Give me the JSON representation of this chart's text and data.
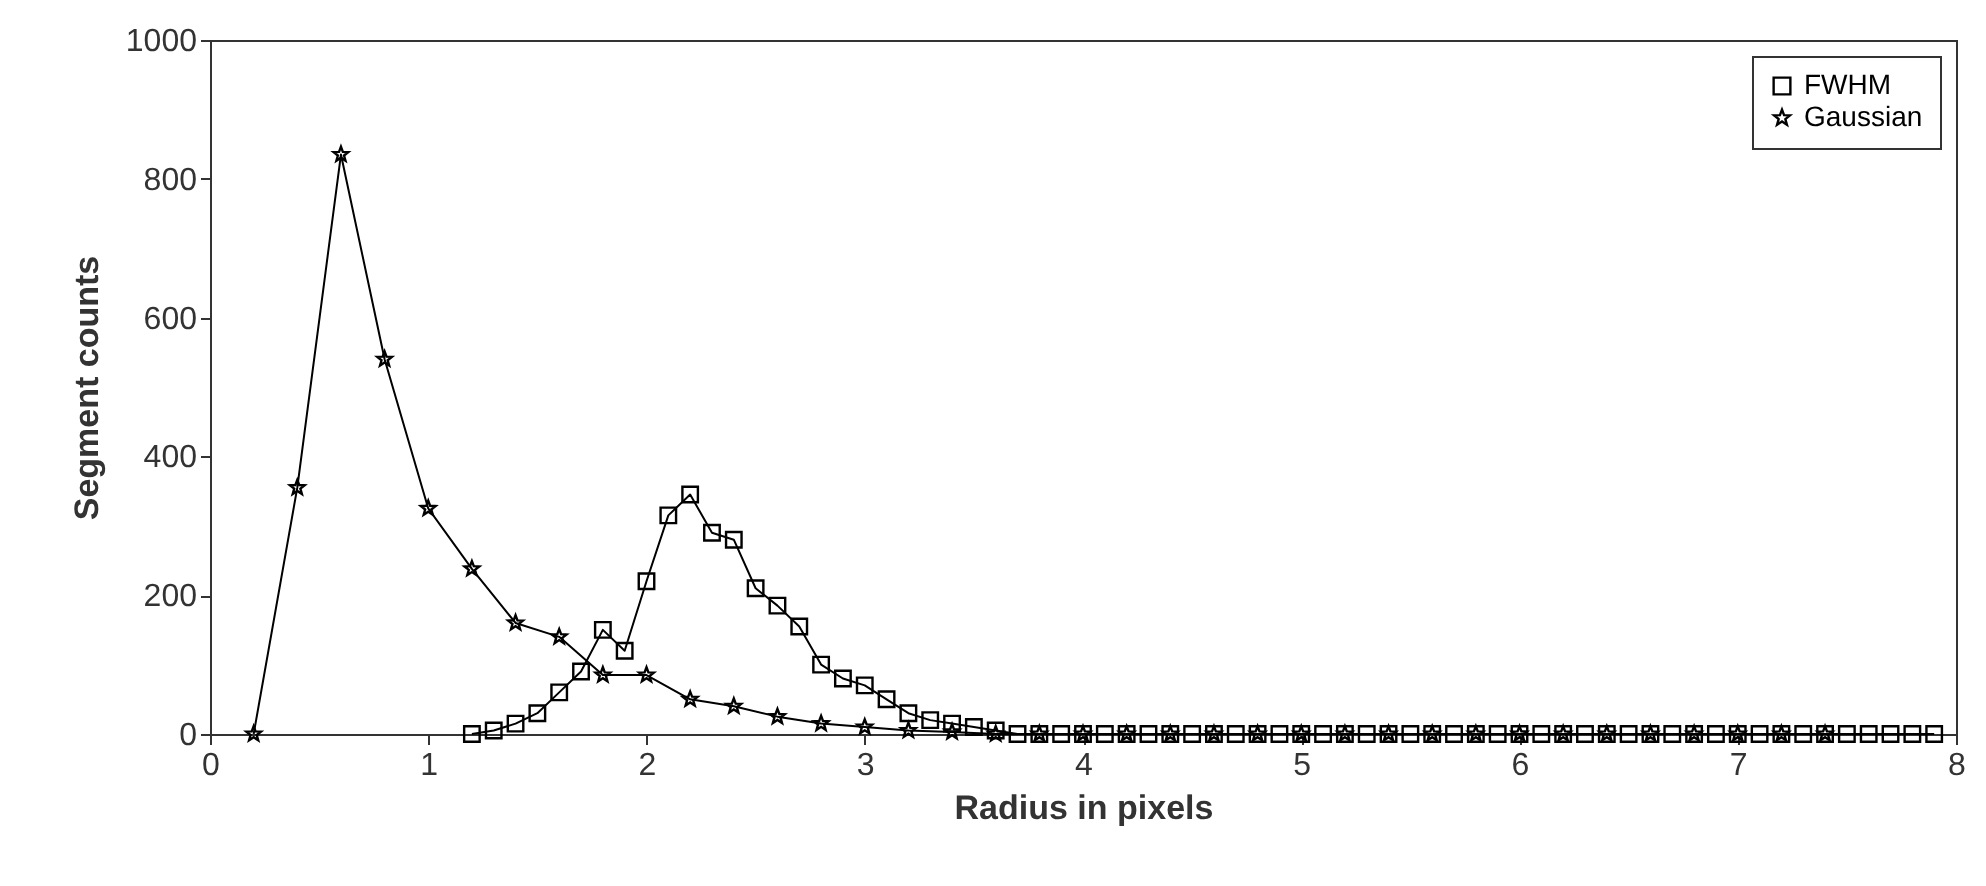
{
  "chart_data": {
    "type": "line",
    "xlabel": "Radius in pixels",
    "ylabel": "Segment counts",
    "xlim": [
      0,
      8
    ],
    "xticks": [
      0,
      1,
      2,
      3,
      4,
      5,
      6,
      7,
      8
    ],
    "ylim": [
      0,
      1000
    ],
    "yticks": [
      0,
      200,
      400,
      600,
      800,
      1000
    ],
    "grid": false,
    "legend": "top right",
    "line_style": "solid",
    "series": [
      {
        "name": "FWHM",
        "color": "#000000",
        "marker": "square",
        "x": [
          1.2,
          1.3,
          1.4,
          1.5,
          1.6,
          1.7,
          1.8,
          1.9,
          2.0,
          2.1,
          2.2,
          2.3,
          2.4,
          2.5,
          2.6,
          2.7,
          2.8,
          2.9,
          3.0,
          3.1,
          3.2,
          3.3,
          3.4,
          3.5,
          3.6,
          3.7,
          3.8,
          3.9,
          4.0,
          4.1,
          4.2,
          4.3,
          4.4,
          4.5,
          4.6,
          4.7,
          4.8,
          4.9,
          5.0,
          5.1,
          5.2,
          5.3,
          5.4,
          5.5,
          5.6,
          5.7,
          5.8,
          5.9,
          6.0,
          6.1,
          6.2,
          6.3,
          6.4,
          6.5,
          6.6,
          6.7,
          6.8,
          6.9,
          7.0,
          7.1,
          7.2,
          7.3,
          7.4,
          7.5,
          7.6,
          7.7,
          7.8,
          7.9
        ],
        "values": [
          0,
          5,
          15,
          30,
          60,
          90,
          150,
          120,
          220,
          315,
          345,
          290,
          280,
          210,
          185,
          155,
          100,
          80,
          70,
          50,
          30,
          20,
          15,
          10,
          5,
          0,
          0,
          0,
          0,
          0,
          0,
          0,
          0,
          0,
          0,
          0,
          0,
          0,
          0,
          0,
          0,
          0,
          0,
          0,
          0,
          0,
          0,
          0,
          0,
          0,
          0,
          0,
          0,
          0,
          0,
          0,
          0,
          0,
          0,
          0,
          0,
          0,
          0,
          0,
          0,
          0,
          0,
          0
        ]
      },
      {
        "name": "Gaussian",
        "color": "#000000",
        "marker": "star",
        "x": [
          0.2,
          0.4,
          0.6,
          0.8,
          1.0,
          1.2,
          1.4,
          1.6,
          1.8,
          2.0,
          2.2,
          2.4,
          2.6,
          2.8,
          3.0,
          3.2,
          3.4,
          3.6,
          3.8,
          4.0,
          4.2,
          4.4,
          4.6,
          4.8,
          5.0,
          5.2,
          5.4,
          5.6,
          5.8,
          6.0,
          6.2,
          6.4,
          6.6,
          6.8,
          7.0,
          7.2,
          7.4
        ],
        "values": [
          0,
          355,
          835,
          540,
          325,
          238,
          160,
          140,
          85,
          85,
          50,
          40,
          25,
          15,
          10,
          5,
          3,
          0,
          0,
          0,
          0,
          0,
          0,
          0,
          0,
          0,
          0,
          0,
          0,
          0,
          0,
          0,
          0,
          0,
          0,
          0,
          0
        ]
      }
    ]
  }
}
